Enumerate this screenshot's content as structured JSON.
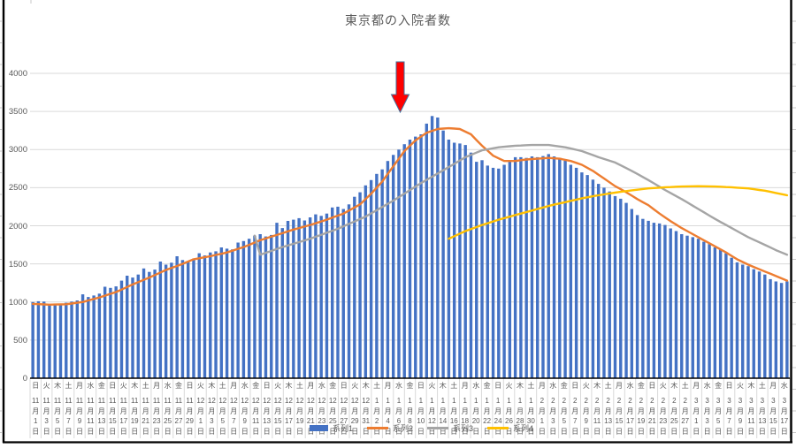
{
  "title": "東京都の入院者数",
  "colors": {
    "bar_blue": "#4472C4",
    "line_orange": "#ED7D31",
    "line_gray": "#A5A5A5",
    "line_yellow": "#FFC000",
    "arrow_red": "#FF0000",
    "arrow_outline": "#41719C",
    "gridline": "#D9D9D9",
    "axis_text": "#595959",
    "axis_line": "#000000",
    "frame": "#000000"
  },
  "legend": [
    {
      "label": "系列1",
      "color": "#4472C4",
      "swatch": "bar"
    },
    {
      "label": "系列2",
      "color": "#ED7D31",
      "swatch": "line"
    },
    {
      "label": "系列3",
      "color": "#A5A5A5",
      "swatch": "line"
    },
    {
      "label": "系列4",
      "color": "#FFC000",
      "swatch": "line"
    }
  ],
  "chart_data": {
    "type": "bar",
    "title": "東京都の入院者数",
    "xlabel": "",
    "ylabel": "",
    "ylim": [
      0,
      4000
    ],
    "yticks": [
      0,
      500,
      1000,
      1500,
      2000,
      2500,
      3000,
      3500,
      4000
    ],
    "grid": true,
    "legend_position": "bottom-center",
    "x_period": "2020-11-01 〜 2021-03-17 (日次、ラベルは2日おき)",
    "x_labels": [
      {
        "w": "日",
        "m": "11",
        "d": "1"
      },
      {
        "w": "火",
        "m": "11",
        "d": "3"
      },
      {
        "w": "木",
        "m": "11",
        "d": "5"
      },
      {
        "w": "土",
        "m": "11",
        "d": "7"
      },
      {
        "w": "月",
        "m": "11",
        "d": "9"
      },
      {
        "w": "水",
        "m": "11",
        "d": "11"
      },
      {
        "w": "金",
        "m": "11",
        "d": "13"
      },
      {
        "w": "日",
        "m": "11",
        "d": "15"
      },
      {
        "w": "火",
        "m": "11",
        "d": "17"
      },
      {
        "w": "木",
        "m": "11",
        "d": "19"
      },
      {
        "w": "土",
        "m": "11",
        "d": "21"
      },
      {
        "w": "月",
        "m": "11",
        "d": "23"
      },
      {
        "w": "水",
        "m": "11",
        "d": "25"
      },
      {
        "w": "金",
        "m": "11",
        "d": "27"
      },
      {
        "w": "日",
        "m": "11",
        "d": "29"
      },
      {
        "w": "火",
        "m": "12",
        "d": "1"
      },
      {
        "w": "木",
        "m": "12",
        "d": "3"
      },
      {
        "w": "土",
        "m": "12",
        "d": "5"
      },
      {
        "w": "月",
        "m": "12",
        "d": "7"
      },
      {
        "w": "水",
        "m": "12",
        "d": "9"
      },
      {
        "w": "金",
        "m": "12",
        "d": "11"
      },
      {
        "w": "日",
        "m": "12",
        "d": "13"
      },
      {
        "w": "火",
        "m": "12",
        "d": "15"
      },
      {
        "w": "木",
        "m": "12",
        "d": "17"
      },
      {
        "w": "土",
        "m": "12",
        "d": "19"
      },
      {
        "w": "月",
        "m": "12",
        "d": "21"
      },
      {
        "w": "水",
        "m": "12",
        "d": "23"
      },
      {
        "w": "金",
        "m": "12",
        "d": "25"
      },
      {
        "w": "日",
        "m": "12",
        "d": "27"
      },
      {
        "w": "火",
        "m": "12",
        "d": "29"
      },
      {
        "w": "木",
        "m": "12",
        "d": "31"
      },
      {
        "w": "土",
        "m": "1",
        "d": "2"
      },
      {
        "w": "月",
        "m": "1",
        "d": "4"
      },
      {
        "w": "水",
        "m": "1",
        "d": "6"
      },
      {
        "w": "金",
        "m": "1",
        "d": "8"
      },
      {
        "w": "日",
        "m": "1",
        "d": "10"
      },
      {
        "w": "火",
        "m": "1",
        "d": "12"
      },
      {
        "w": "木",
        "m": "1",
        "d": "14"
      },
      {
        "w": "土",
        "m": "1",
        "d": "16"
      },
      {
        "w": "月",
        "m": "1",
        "d": "18"
      },
      {
        "w": "水",
        "m": "1",
        "d": "20"
      },
      {
        "w": "金",
        "m": "1",
        "d": "22"
      },
      {
        "w": "日",
        "m": "1",
        "d": "24"
      },
      {
        "w": "火",
        "m": "1",
        "d": "26"
      },
      {
        "w": "木",
        "m": "1",
        "d": "28"
      },
      {
        "w": "土",
        "m": "1",
        "d": "30"
      },
      {
        "w": "月",
        "m": "2",
        "d": "1"
      },
      {
        "w": "水",
        "m": "2",
        "d": "3"
      },
      {
        "w": "金",
        "m": "2",
        "d": "5"
      },
      {
        "w": "日",
        "m": "2",
        "d": "7"
      },
      {
        "w": "火",
        "m": "2",
        "d": "9"
      },
      {
        "w": "木",
        "m": "2",
        "d": "11"
      },
      {
        "w": "土",
        "m": "2",
        "d": "13"
      },
      {
        "w": "月",
        "m": "2",
        "d": "15"
      },
      {
        "w": "水",
        "m": "2",
        "d": "17"
      },
      {
        "w": "金",
        "m": "2",
        "d": "19"
      },
      {
        "w": "日",
        "m": "2",
        "d": "21"
      },
      {
        "w": "火",
        "m": "2",
        "d": "23"
      },
      {
        "w": "木",
        "m": "2",
        "d": "25"
      },
      {
        "w": "土",
        "m": "2",
        "d": "27"
      },
      {
        "w": "月",
        "m": "3",
        "d": "1"
      },
      {
        "w": "水",
        "m": "3",
        "d": "3"
      },
      {
        "w": "金",
        "m": "3",
        "d": "5"
      },
      {
        "w": "日",
        "m": "3",
        "d": "7"
      },
      {
        "w": "火",
        "m": "3",
        "d": "9"
      },
      {
        "w": "木",
        "m": "3",
        "d": "11"
      },
      {
        "w": "土",
        "m": "3",
        "d": "13"
      },
      {
        "w": "月",
        "m": "3",
        "d": "15"
      },
      {
        "w": "水",
        "m": "3",
        "d": "17"
      }
    ],
    "series": [
      {
        "name": "系列1",
        "type": "bar",
        "color": "#4472C4",
        "values": [
          1000,
          1010,
          1005,
          975,
          965,
          970,
          990,
          1005,
          1020,
          1100,
          1065,
          1085,
          1110,
          1200,
          1185,
          1205,
          1280,
          1345,
          1320,
          1360,
          1440,
          1395,
          1425,
          1530,
          1490,
          1515,
          1600,
          1550,
          1530,
          1570,
          1640,
          1610,
          1650,
          1665,
          1716,
          1700,
          1690,
          1780,
          1800,
          1830,
          1870,
          1890,
          1860,
          1880,
          2040,
          1970,
          2064,
          2080,
          2100,
          2070,
          2110,
          2150,
          2130,
          2160,
          2240,
          2250,
          2220,
          2280,
          2380,
          2440,
          2530,
          2600,
          2680,
          2740,
          2850,
          2930,
          3000,
          3070,
          3130,
          3170,
          3200,
          3340,
          3440,
          3420,
          3250,
          3130,
          3090,
          3080,
          3060,
          2960,
          2840,
          2860,
          2790,
          2760,
          2750,
          2800,
          2860,
          2900,
          2900,
          2890,
          2910,
          2900,
          2915,
          2940,
          2910,
          2890,
          2855,
          2800,
          2760,
          2700,
          2665,
          2605,
          2550,
          2500,
          2450,
          2390,
          2355,
          2300,
          2220,
          2140,
          2090,
          2065,
          2040,
          2030,
          2010,
          1965,
          1930,
          1890,
          1870,
          1850,
          1830,
          1790,
          1760,
          1716,
          1690,
          1640,
          1580,
          1520,
          1490,
          1470,
          1430,
          1400,
          1360,
          1300,
          1270,
          1250,
          1270
        ]
      },
      {
        "name": "系列2",
        "type": "line",
        "color": "#ED7D31",
        "values": [
          975,
          972,
          968,
          965,
          967,
          968,
          970,
          980,
          990,
          1000,
          1020,
          1040,
          1060,
          1083,
          1107,
          1130,
          1163,
          1197,
          1230,
          1260,
          1290,
          1320,
          1353,
          1387,
          1420,
          1447,
          1473,
          1500,
          1530,
          1560,
          1573,
          1587,
          1600,
          1617,
          1633,
          1650,
          1673,
          1697,
          1720,
          1750,
          1780,
          1810,
          1833,
          1857,
          1880,
          1903,
          1927,
          1950,
          1970,
          1990,
          2010,
          2033,
          2057,
          2080,
          2107,
          2133,
          2160,
          2200,
          2240,
          2280,
          2350,
          2420,
          2500,
          2580,
          2680,
          2780,
          2880,
          2980,
          3050,
          3120,
          3170,
          3220,
          3245,
          3270,
          3275,
          3280,
          3275,
          3270,
          3235,
          3200,
          3125,
          3050,
          2985,
          2920,
          2885,
          2850,
          2850,
          2850,
          2860,
          2870,
          2875,
          2880,
          2885,
          2890,
          2885,
          2880,
          2865,
          2850,
          2825,
          2800,
          2760,
          2720,
          2670,
          2620,
          2570,
          2520,
          2480,
          2440,
          2395,
          2350,
          2310,
          2270,
          2215,
          2160,
          2110,
          2060,
          2015,
          1970,
          1930,
          1890,
          1850,
          1810,
          1770,
          1730,
          1690,
          1650,
          1605,
          1560,
          1525,
          1490,
          1460,
          1430,
          1400,
          1370,
          1340,
          1310,
          1280
        ]
      },
      {
        "name": "系列3",
        "type": "line",
        "color": "#A5A5A5",
        "values": [
          null,
          null,
          null,
          null,
          null,
          null,
          null,
          null,
          null,
          null,
          null,
          null,
          null,
          null,
          null,
          null,
          null,
          null,
          null,
          null,
          null,
          null,
          null,
          null,
          null,
          null,
          null,
          null,
          null,
          null,
          null,
          null,
          null,
          null,
          null,
          null,
          null,
          null,
          null,
          null,
          1870,
          1620,
          1645,
          1670,
          1695,
          1720,
          1742,
          1764,
          1786,
          1808,
          1830,
          1856,
          1882,
          1908,
          1934,
          1960,
          1992,
          2024,
          2056,
          2088,
          2120,
          2162,
          2204,
          2246,
          2288,
          2330,
          2376,
          2422,
          2468,
          2514,
          2560,
          2602,
          2644,
          2686,
          2728,
          2770,
          2813,
          2857,
          2900,
          2930,
          2960,
          2990,
          3003,
          3017,
          3030,
          3037,
          3043,
          3050,
          3053,
          3057,
          3060,
          3060,
          3060,
          3060,
          3050,
          3040,
          3030,
          3013,
          2997,
          2980,
          2953,
          2927,
          2900,
          2877,
          2853,
          2830,
          2793,
          2757,
          2720,
          2680,
          2640,
          2600,
          2557,
          2513,
          2470,
          2430,
          2390,
          2350,
          2307,
          2263,
          2220,
          2177,
          2133,
          2090,
          2050,
          2010,
          1970,
          1930,
          1890,
          1850,
          1817,
          1783,
          1750,
          1715,
          1680,
          1650,
          1620
        ]
      },
      {
        "name": "系列4",
        "type": "line",
        "color": "#FFC000",
        "values": [
          null,
          null,
          null,
          null,
          null,
          null,
          null,
          null,
          null,
          null,
          null,
          null,
          null,
          null,
          null,
          null,
          null,
          null,
          null,
          null,
          null,
          null,
          null,
          null,
          null,
          null,
          null,
          null,
          null,
          null,
          null,
          null,
          null,
          null,
          null,
          null,
          null,
          null,
          null,
          null,
          null,
          null,
          null,
          null,
          null,
          null,
          null,
          null,
          null,
          null,
          null,
          null,
          null,
          null,
          null,
          null,
          null,
          null,
          null,
          null,
          null,
          null,
          null,
          null,
          null,
          null,
          null,
          null,
          null,
          null,
          null,
          null,
          null,
          null,
          null,
          1830,
          1863,
          1897,
          1930,
          1957,
          1983,
          2010,
          2033,
          2057,
          2080,
          2100,
          2120,
          2140,
          2160,
          2180,
          2200,
          2220,
          2240,
          2260,
          2277,
          2293,
          2310,
          2327,
          2343,
          2360,
          2373,
          2387,
          2400,
          2412,
          2424,
          2435,
          2445,
          2455,
          2465,
          2473,
          2482,
          2490,
          2495,
          2500,
          2505,
          2508,
          2512,
          2515,
          2517,
          2518,
          2520,
          2518,
          2517,
          2515,
          2512,
          2508,
          2505,
          2500,
          2495,
          2490,
          2480,
          2470,
          2460,
          2445,
          2430,
          2415,
          2400
        ]
      }
    ],
    "annotation": {
      "shape": "red-arrow-down",
      "points_at_label": "1月7日",
      "approx_value_pointed": 3450
    }
  }
}
